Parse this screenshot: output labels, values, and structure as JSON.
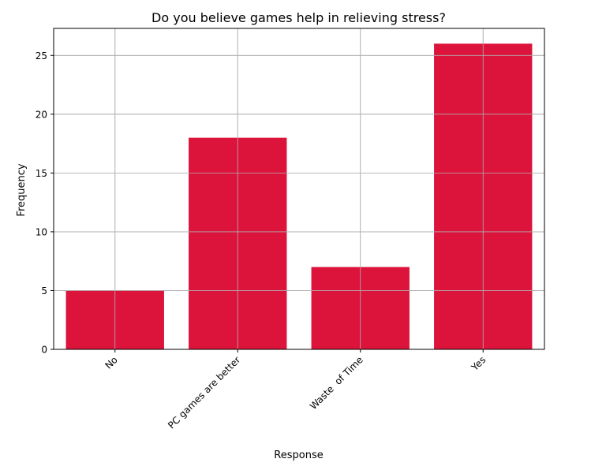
{
  "chart_data": {
    "type": "bar",
    "title": "Do you believe games help in relieving stress?",
    "xlabel": "Response",
    "ylabel": "Frequency",
    "categories": [
      "No",
      "PC games are better",
      "Waste  of Time",
      "Yes"
    ],
    "values": [
      5,
      18,
      7,
      26
    ],
    "ylim": [
      0,
      27.3
    ],
    "yticks": [
      0,
      5,
      10,
      15,
      20,
      25
    ],
    "grid": true,
    "legend": "none",
    "bar_color": "#DC143C"
  }
}
